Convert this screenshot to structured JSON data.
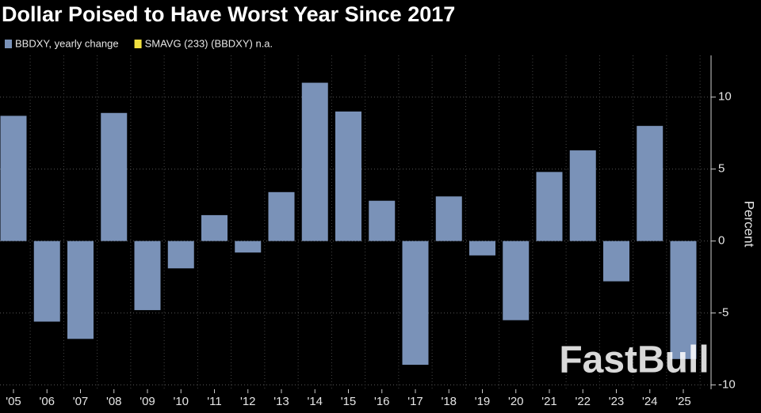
{
  "chart_data": {
    "type": "bar",
    "title": "Dollar Poised to Have Worst Year Since 2017",
    "categories": [
      "'05",
      "'06",
      "'07",
      "'08",
      "'09",
      "'10",
      "'11",
      "'12",
      "'13",
      "'14",
      "'15",
      "'16",
      "'17",
      "'18",
      "'19",
      "'20",
      "'21",
      "'22",
      "'23",
      "'24",
      "'25"
    ],
    "series": [
      {
        "name": "BBDXY, yearly change",
        "color": "#7a92b8",
        "values": [
          8.7,
          -5.6,
          -6.8,
          8.9,
          -4.8,
          -1.9,
          1.8,
          -0.8,
          3.4,
          11.0,
          9.0,
          2.8,
          -8.6,
          3.1,
          -1.0,
          -5.5,
          4.8,
          6.3,
          -2.8,
          8.0,
          -8.2
        ]
      },
      {
        "name": "SMAVG (233) (BBDXY) n.a.",
        "color": "#f0e040",
        "values": [
          null,
          null,
          null,
          null,
          null,
          null,
          null,
          null,
          null,
          null,
          null,
          null,
          null,
          null,
          null,
          null,
          null,
          null,
          null,
          null,
          null
        ]
      }
    ],
    "y_axis_label": "Percent",
    "ylim": [
      -10.3,
      12.9
    ],
    "yticks": [
      -10,
      -5,
      0,
      5,
      10
    ],
    "grid": true,
    "watermark": "FastBull"
  }
}
